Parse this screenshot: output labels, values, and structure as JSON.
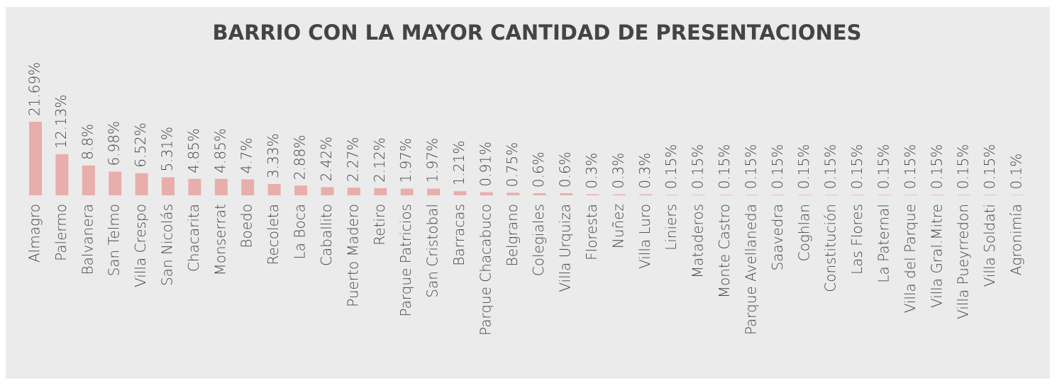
{
  "chart_data": {
    "type": "bar",
    "title": "BARRIO CON LA MAYOR CANTIDAD DE PRESENTACIONES",
    "categories": [
      "Almagro",
      "Palermo",
      "Balvanera",
      "San Telmo",
      "Villa Crespo",
      "San Nicolás",
      "Chacarita",
      "Monserrat",
      "Boedo",
      "Recoleta",
      "La Boca",
      "Caballito",
      "Puerto Madero",
      "Retiro",
      "Parque Patricios",
      "San Cristobal",
      "Barracas",
      "Parque Chacabuco",
      "Belgrano",
      "Colegiales",
      "Villa Urquiza",
      "Floresta",
      "Nuñez",
      "Villa Luro",
      "Liniers",
      "Mataderos",
      "Monte Castro",
      "Parque Avellaneda",
      "Saavedra",
      "Coghlan",
      "Constitución",
      "Las Flores",
      "La Paternal",
      "Villa del Parque",
      "Villa Gral.Mitre",
      "Villa Pueyrredon",
      "Villa Soldati",
      "Agronimía"
    ],
    "values": [
      21.69,
      12.13,
      8.8,
      6.98,
      6.52,
      5.31,
      4.85,
      4.85,
      4.7,
      3.33,
      2.88,
      2.42,
      2.27,
      2.12,
      1.97,
      1.97,
      1.21,
      0.91,
      0.75,
      0.6,
      0.6,
      0.3,
      0.3,
      0.3,
      0.15,
      0.15,
      0.15,
      0.15,
      0.15,
      0.15,
      0.15,
      0.15,
      0.15,
      0.15,
      0.15,
      0.15,
      0.15,
      0.1
    ],
    "value_labels": [
      "21.69%",
      "12.13%",
      "8.8%",
      "6.98%",
      "6.52%",
      "5.31%",
      "4.85%",
      "4.85%",
      "4.7%",
      "3.33%",
      "2.88%",
      "2.42%",
      "2.27%",
      "2.12%",
      "1.97%",
      "1.97%",
      "1.21%",
      "0.91%",
      "0.75%",
      "0.6%",
      "0.6%",
      "0.3%",
      "0.3%",
      "0.3%",
      "0.15%",
      "0.15%",
      "0.15%",
      "0.15%",
      "0.15%",
      "0.15%",
      "0.15%",
      "0.15%",
      "0.15%",
      "0.15%",
      "0.15%",
      "0.15%",
      "0.15%",
      "0.1%"
    ],
    "color": "#e8aeab"
  }
}
